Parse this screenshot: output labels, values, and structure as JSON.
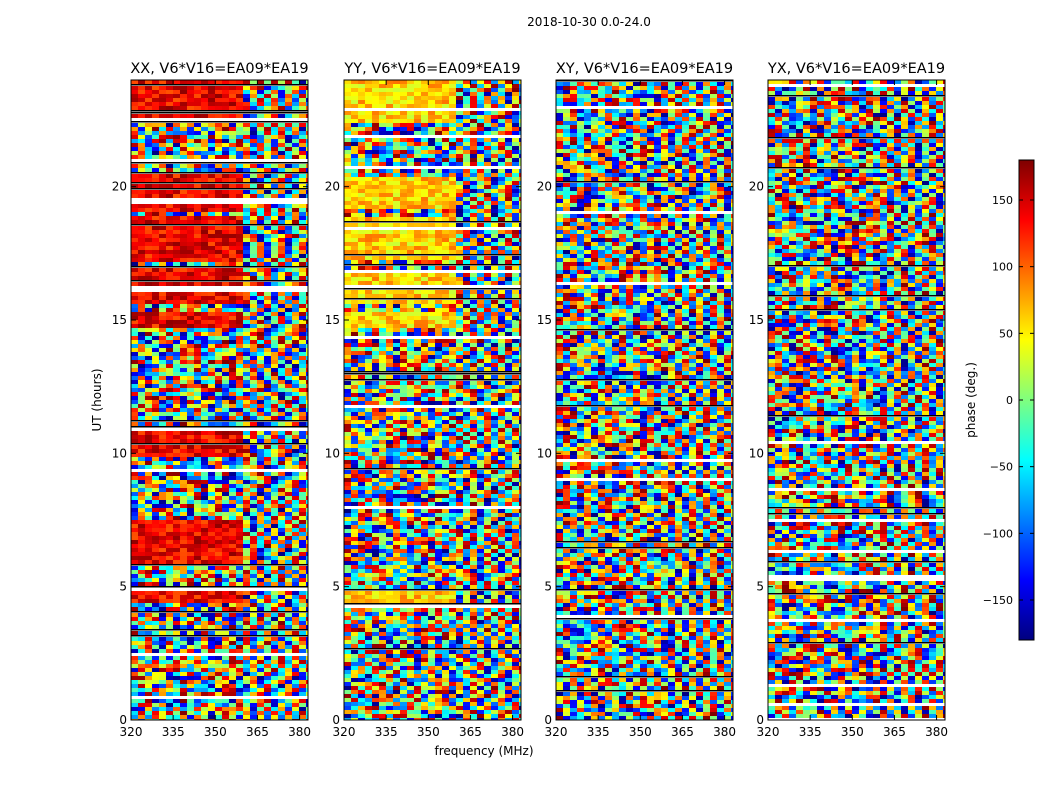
{
  "figure": {
    "title": "2018-10-30 0.0-24.0",
    "xlabel": "frequency (MHz)",
    "ylabel": "UT (hours)"
  },
  "colorbar": {
    "label": "phase (deg.)",
    "range": [
      -180,
      180
    ],
    "ticks": [
      -150,
      -100,
      -50,
      0,
      50,
      100,
      150
    ],
    "tick_labels": [
      "−150",
      "−100",
      "−50",
      "0",
      "50",
      "100",
      "150"
    ],
    "colormap": [
      "#00007f",
      "#0000ff",
      "#007fff",
      "#00ffff",
      "#7fff7f",
      "#ffff00",
      "#ff7f00",
      "#ff0000",
      "#7f0000"
    ]
  },
  "chart_data": [
    {
      "type": "heatmap",
      "title": "XX, V6*V16=EA09*EA19",
      "x_range": [
        320,
        383
      ],
      "y_range": [
        0,
        24
      ],
      "x_ticks": [
        320,
        335,
        350,
        365,
        380
      ],
      "y_ticks": [
        0,
        5,
        10,
        15,
        20
      ],
      "z": "phase (deg.), range -180..180",
      "dominant_phase_low_freq_deg": 140,
      "coherent_bands_hours": [
        [
          4.5,
          5.0
        ],
        [
          6.0,
          7.5
        ],
        [
          10.0,
          11.0
        ],
        [
          14.8,
          15.3
        ],
        [
          15.7,
          17.0
        ],
        [
          17.3,
          19.0
        ],
        [
          19.2,
          20.5
        ],
        [
          22.5,
          24.0
        ]
      ]
    },
    {
      "type": "heatmap",
      "title": "YY, V6*V16=EA09*EA19",
      "x_range": [
        320,
        383
      ],
      "y_range": [
        0,
        24
      ],
      "x_ticks": [
        320,
        335,
        350,
        365,
        380
      ],
      "y_ticks": [
        0,
        5,
        10,
        15,
        20
      ],
      "z": "phase (deg.), range -180..180",
      "dominant_phase_low_freq_deg": 60,
      "coherent_bands_hours": [
        [
          4.5,
          5.0
        ],
        [
          14.8,
          15.3
        ],
        [
          15.7,
          17.0
        ],
        [
          17.3,
          19.0
        ],
        [
          19.2,
          20.5
        ],
        [
          22.5,
          24.0
        ]
      ]
    },
    {
      "type": "heatmap",
      "title": "XY, V6*V16=EA09*EA19",
      "x_range": [
        320,
        383
      ],
      "y_range": [
        0,
        24
      ],
      "x_ticks": [
        320,
        335,
        350,
        365,
        380
      ],
      "y_ticks": [
        0,
        5,
        10,
        15,
        20
      ],
      "z": "phase (deg.), range -180..180",
      "dominant_phase_low_freq_deg": null,
      "coherent_bands_hours": []
    },
    {
      "type": "heatmap",
      "title": "YX, V6*V16=EA09*EA19",
      "x_range": [
        320,
        383
      ],
      "y_range": [
        0,
        24
      ],
      "x_ticks": [
        320,
        335,
        350,
        365,
        380
      ],
      "y_ticks": [
        0,
        5,
        10,
        15,
        20
      ],
      "z": "phase (deg.), range -180..180",
      "dominant_phase_low_freq_deg": null,
      "coherent_bands_hours": [
        [
          19.0,
          20.5
        ]
      ]
    }
  ]
}
